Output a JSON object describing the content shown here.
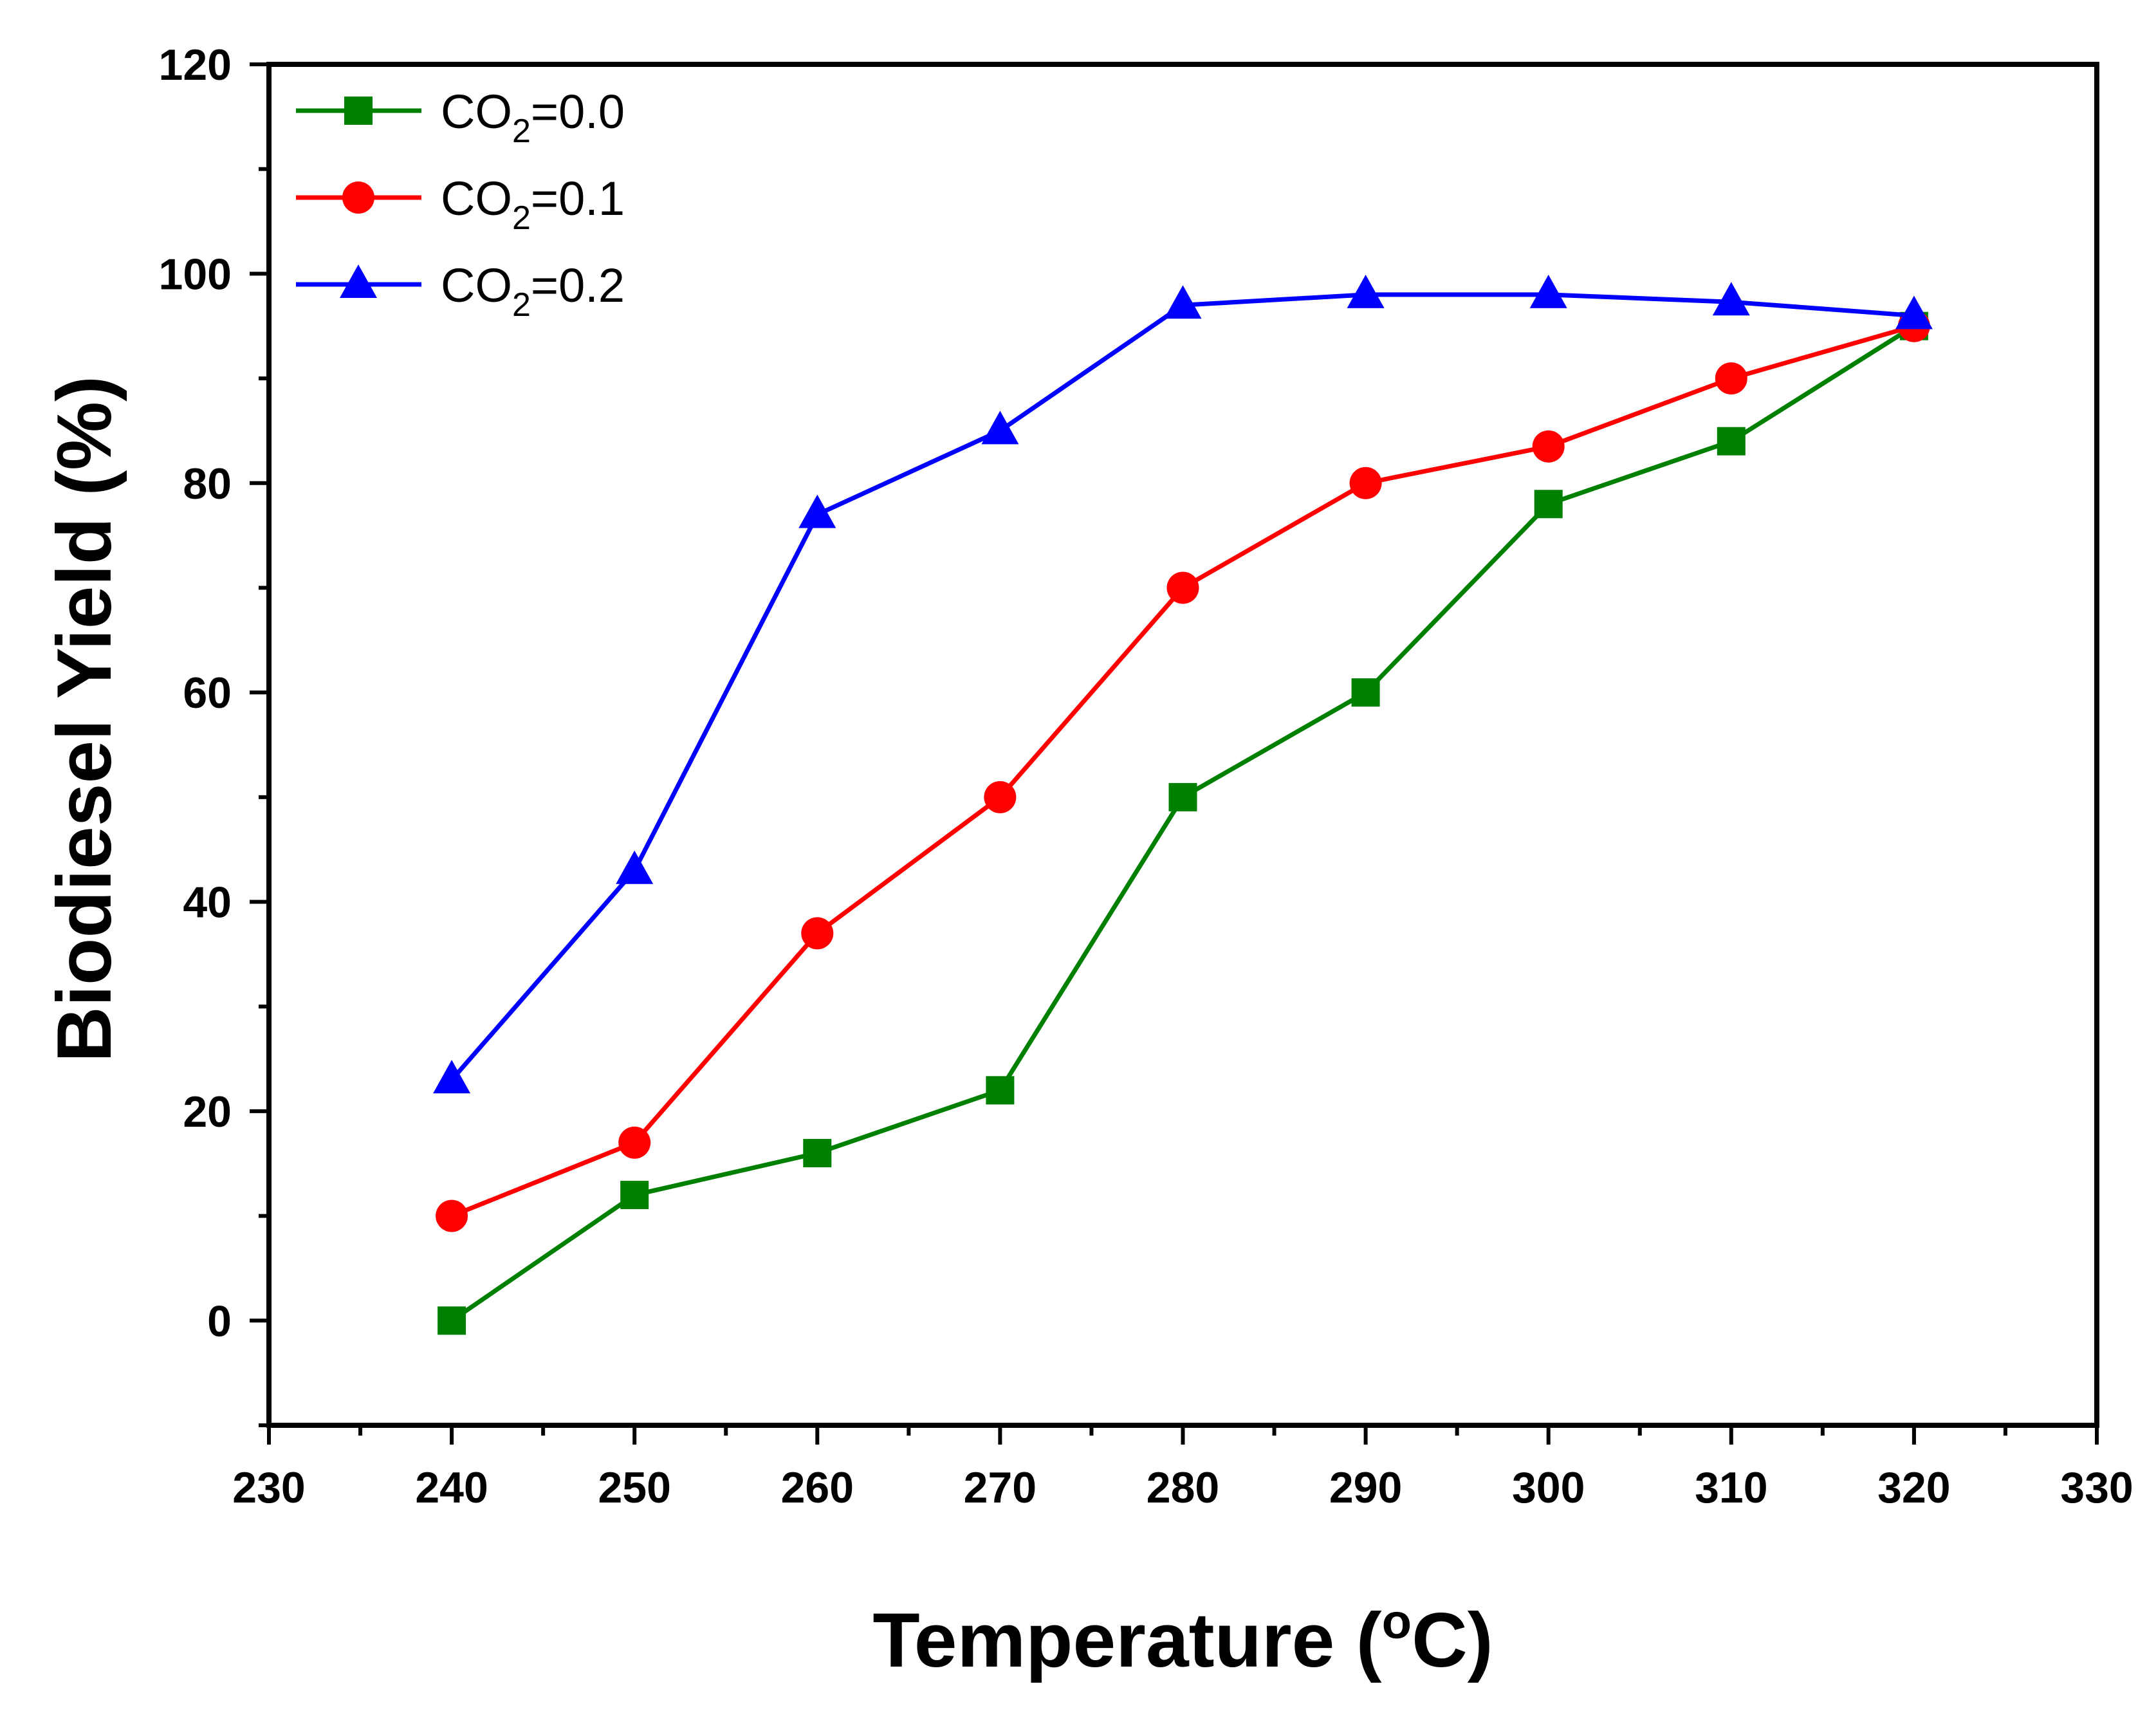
{
  "chart_data": {
    "type": "line",
    "title": "",
    "xlabel": {
      "main": "Temperature (",
      "sup": "o",
      "unit": "C)"
    },
    "ylabel": "Biodiesel Yield (%)",
    "xlim": [
      230,
      330
    ],
    "ylim": [
      -10,
      120
    ],
    "xticks": [
      230,
      240,
      250,
      260,
      270,
      280,
      290,
      300,
      310,
      320,
      330
    ],
    "yticks": [
      0,
      20,
      40,
      60,
      80,
      100,
      120
    ],
    "x": [
      240,
      250,
      260,
      270,
      280,
      290,
      300,
      310,
      320
    ],
    "series": [
      {
        "name": "CO2=0.0",
        "label": {
          "main": "CO",
          "sub": "2",
          "tail": "=0.0"
        },
        "color": "#008000",
        "marker": "square",
        "values": [
          0,
          12,
          16,
          22,
          50,
          60,
          78,
          84,
          95
        ]
      },
      {
        "name": "CO2=0.1",
        "label": {
          "main": "CO",
          "sub": "2",
          "tail": "=0.1"
        },
        "color": "#ff0000",
        "marker": "circle",
        "values": [
          10,
          17,
          37,
          50,
          70,
          80,
          83.5,
          90,
          95
        ]
      },
      {
        "name": "CO2=0.2",
        "label": {
          "main": "CO",
          "sub": "2",
          "tail": "=0.2"
        },
        "color": "#0000ff",
        "marker": "triangle",
        "values": [
          23,
          43,
          77,
          85,
          97,
          98,
          98,
          97.3,
          96
        ]
      }
    ],
    "legend_position": "top-left",
    "grid": false
  }
}
